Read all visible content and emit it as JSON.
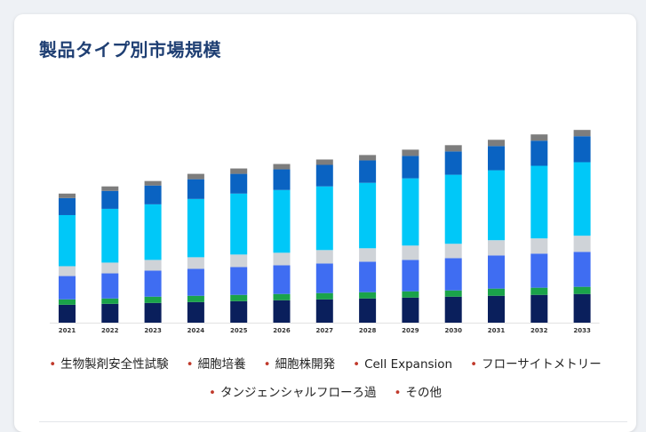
{
  "title": "製品タイプ別市場規模",
  "chart_data": {
    "type": "bar",
    "stacked": true,
    "title": "",
    "xlabel": "",
    "ylabel": "",
    "ylim": [
      0,
      235
    ],
    "grid": false,
    "legend_position": "bottom",
    "categories": [
      "2021",
      "2022",
      "2023",
      "2024",
      "2025",
      "2026",
      "2027",
      "2028",
      "2029",
      "2030",
      "2031",
      "2032",
      "2033"
    ],
    "series": [
      {
        "name": "生物製剤安全性試験",
        "color": "#0a1f5c",
        "values": [
          20,
          21,
          22,
          23,
          24,
          25,
          26,
          27,
          28,
          29,
          30,
          31,
          32
        ]
      },
      {
        "name": "細胞培養",
        "color": "#1aa34a",
        "values": [
          6,
          6,
          7,
          7,
          7,
          7,
          7,
          7,
          7,
          7,
          8,
          8,
          8
        ]
      },
      {
        "name": "細胞株開発",
        "color": "#3f6df2",
        "values": [
          26,
          28,
          29,
          30,
          31,
          32,
          33,
          34,
          35,
          36,
          37,
          38,
          39
        ]
      },
      {
        "name": "Cell Expansion",
        "color": "#cfd3d8",
        "values": [
          11,
          12,
          12,
          13,
          14,
          14,
          15,
          15,
          16,
          16,
          17,
          17,
          18
        ]
      },
      {
        "name": "フローサイトメトリー",
        "color": "#00c8f8",
        "values": [
          57,
          60,
          62,
          65,
          68,
          70,
          71,
          73,
          75,
          77,
          78,
          81,
          82
        ]
      },
      {
        "name": "タンジェンシャルフローろ過",
        "color": "#0a63c2",
        "values": [
          19,
          20,
          21,
          22,
          22,
          23,
          24,
          25,
          25,
          26,
          27,
          28,
          29
        ]
      },
      {
        "name": "その他",
        "color": "#7d7d7d",
        "values": [
          5,
          5,
          5,
          6,
          6,
          6,
          6,
          6,
          7,
          7,
          7,
          7,
          7
        ]
      }
    ]
  }
}
